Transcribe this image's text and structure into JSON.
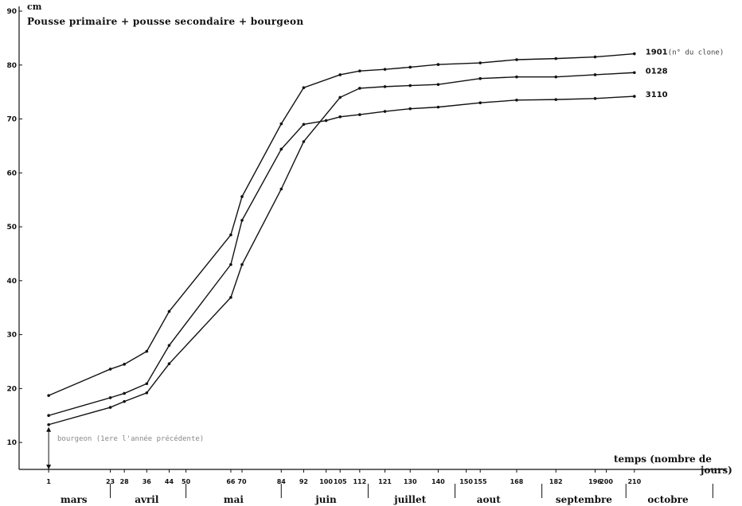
{
  "chart_data": {
    "type": "line",
    "title": "Pousse primaire + pousse secondaire + bourgeon",
    "ylabel": "cm",
    "xlabel_line1": "temps (nombre de",
    "xlabel_line2": "jours)",
    "ylim": [
      5,
      90
    ],
    "xlim": [
      -5,
      245
    ],
    "y_ticks": [
      10,
      20,
      30,
      40,
      50,
      60,
      70,
      80,
      90
    ],
    "x_ticks": [
      1,
      23,
      28,
      36,
      44,
      50,
      66,
      70,
      84,
      92,
      100,
      105,
      112,
      121,
      130,
      140,
      150,
      155,
      168,
      182,
      196,
      200,
      210
    ],
    "month_boundaries": [
      23,
      50,
      84,
      115,
      146,
      177,
      207,
      238
    ],
    "months": [
      {
        "label": "mars",
        "x": 10
      },
      {
        "label": "avril",
        "x": 36
      },
      {
        "label": "mai",
        "x": 67
      },
      {
        "label": "juin",
        "x": 100
      },
      {
        "label": "juillet",
        "x": 130
      },
      {
        "label": "aout",
        "x": 158
      },
      {
        "label": "septembre",
        "x": 192
      },
      {
        "label": "octobre",
        "x": 222
      }
    ],
    "annotation": "bourgeon (1ere l'année précédente)",
    "annotation_x": 1,
    "annotation_y": 10,
    "grid": false,
    "series": [
      {
        "name": "1901",
        "note": "(n° du clone)",
        "x": [
          1,
          23,
          28,
          36,
          44,
          66,
          70,
          84,
          92,
          105,
          112,
          121,
          130,
          140,
          155,
          168,
          182,
          196,
          210
        ],
        "y": [
          18.7,
          23.6,
          24.5,
          26.9,
          34.3,
          48.5,
          55.6,
          69.1,
          75.8,
          78.2,
          78.9,
          79.2,
          79.6,
          80.1,
          80.4,
          81.0,
          81.2,
          81.5,
          82.1
        ]
      },
      {
        "name": "3110",
        "x": [
          1,
          23,
          28,
          36,
          44,
          66,
          70,
          84,
          92,
          100,
          105,
          112,
          121,
          130,
          140,
          155,
          168,
          182,
          196,
          210
        ],
        "y": [
          15.0,
          18.3,
          19.1,
          20.9,
          28.0,
          43.0,
          51.2,
          64.4,
          69.0,
          69.7,
          70.4,
          70.8,
          71.4,
          71.9,
          72.2,
          73.0,
          73.5,
          73.6,
          73.8,
          74.2
        ]
      },
      {
        "name": "0128",
        "x": [
          1,
          23,
          28,
          36,
          44,
          66,
          70,
          84,
          92,
          105,
          112,
          121,
          130,
          140,
          155,
          168,
          182,
          196,
          210
        ],
        "y": [
          13.3,
          16.5,
          17.6,
          19.2,
          24.6,
          36.9,
          43.0,
          57.0,
          65.8,
          74.0,
          75.7,
          76.0,
          76.2,
          76.4,
          77.5,
          77.8,
          77.8,
          78.2,
          78.6
        ]
      }
    ]
  }
}
